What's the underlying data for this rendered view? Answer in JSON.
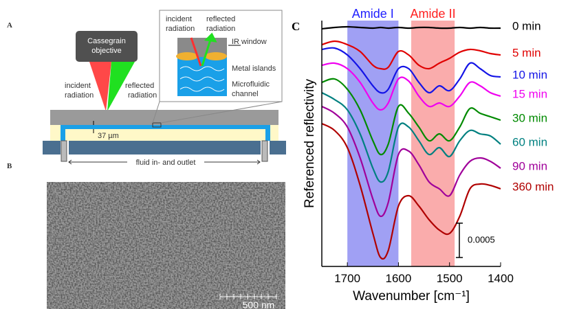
{
  "panel_labels": [
    "A",
    "B",
    "C"
  ],
  "diagram": {
    "objective": [
      "Cassegrain",
      "objective"
    ],
    "incident": [
      "incident",
      "radiation"
    ],
    "reflected": [
      "reflected",
      "radiation"
    ],
    "thickness": "37 µm",
    "fluid": "fluid in- and outlet",
    "inset": {
      "incident": [
        "incident",
        "radiation"
      ],
      "reflected": [
        "reflected",
        "radiation"
      ],
      "window": "IR window",
      "islands": "Metal islands",
      "channel": [
        "Microfluidic",
        "channel"
      ]
    }
  },
  "sem": {
    "scale_label": "500 nm"
  },
  "chart_data": {
    "type": "line",
    "x_label": "Wavenumber [cm⁻¹]",
    "y_label": "Referenced reflectivity",
    "x": [
      1750,
      1725,
      1700,
      1675,
      1650,
      1635,
      1620,
      1600,
      1580,
      1560,
      1540,
      1520,
      1500,
      1480,
      1460,
      1440,
      1420,
      1400
    ],
    "xlim": [
      1750,
      1400
    ],
    "xticks": [
      1700,
      1600,
      1500,
      1400
    ],
    "ylim": [
      0,
      0.00358
    ],
    "scale_bar": 0.0005,
    "bands": [
      {
        "label": "Amide I",
        "range": [
          1700,
          1600
        ],
        "color": "#8080f0"
      },
      {
        "label": "Amide II",
        "range": [
          1575,
          1490
        ],
        "color": "#f89090"
      }
    ],
    "series": [
      {
        "name": "0 min",
        "color": "#000000",
        "values": [
          0.00346,
          0.00348,
          0.00349,
          0.00348,
          0.00347,
          0.00348,
          0.00347,
          0.00348,
          0.00347,
          0.00348,
          0.00348,
          0.00347,
          0.00347,
          0.00348,
          0.00347,
          0.00348,
          0.00347,
          0.00347
        ]
      },
      {
        "name": "5 min",
        "color": "#e00000",
        "values": [
          0.00323,
          0.00328,
          0.00323,
          0.00313,
          0.00293,
          0.00288,
          0.0029,
          0.00313,
          0.00308,
          0.00293,
          0.00288,
          0.00296,
          0.00303,
          0.00312,
          0.00316,
          0.00314,
          0.0031,
          0.00308
        ]
      },
      {
        "name": "10 min",
        "color": "#1414e6",
        "values": [
          0.00316,
          0.00318,
          0.00308,
          0.00288,
          0.00263,
          0.00253,
          0.00258,
          0.00288,
          0.00288,
          0.00268,
          0.00253,
          0.00263,
          0.00256,
          0.00273,
          0.00296,
          0.00288,
          0.00278,
          0.00276
        ]
      },
      {
        "name": "15 min",
        "color": "#f000f0",
        "values": [
          0.00293,
          0.00296,
          0.00288,
          0.00268,
          0.00238,
          0.00228,
          0.00238,
          0.00273,
          0.0027,
          0.00248,
          0.00233,
          0.00238,
          0.00233,
          0.00248,
          0.00268,
          0.00263,
          0.00253,
          0.00248
        ]
      },
      {
        "name": "30 min",
        "color": "#008a00",
        "values": [
          0.00268,
          0.00273,
          0.00258,
          0.00228,
          0.00183,
          0.00163,
          0.00178,
          0.00233,
          0.00223,
          0.00203,
          0.00183,
          0.00193,
          0.00183,
          0.00203,
          0.0023,
          0.00223,
          0.00218,
          0.00213
        ]
      },
      {
        "name": "60 min",
        "color": "#008080",
        "values": [
          0.00253,
          0.00243,
          0.00228,
          0.00193,
          0.00143,
          0.00123,
          0.00138,
          0.00203,
          0.00203,
          0.00183,
          0.00163,
          0.00173,
          0.0016,
          0.00183,
          0.00198,
          0.00193,
          0.0019,
          0.00178
        ]
      },
      {
        "name": "90 min",
        "color": "#a0009a",
        "values": [
          0.00233,
          0.00223,
          0.00203,
          0.00158,
          0.00098,
          0.00073,
          0.00093,
          0.00163,
          0.00168,
          0.00148,
          0.00123,
          0.00113,
          0.00103,
          0.00133,
          0.00153,
          0.00158,
          0.00153,
          0.00143
        ]
      },
      {
        "name": "360 min",
        "color": "#b00000",
        "values": [
          0.00208,
          0.00198,
          0.00173,
          0.00118,
          0.00048,
          0.00013,
          0.00023,
          0.00088,
          0.00103,
          0.00088,
          0.00068,
          0.00053,
          0.00048,
          0.00073,
          0.00113,
          0.0012,
          0.00118,
          0.00113
        ]
      }
    ]
  }
}
